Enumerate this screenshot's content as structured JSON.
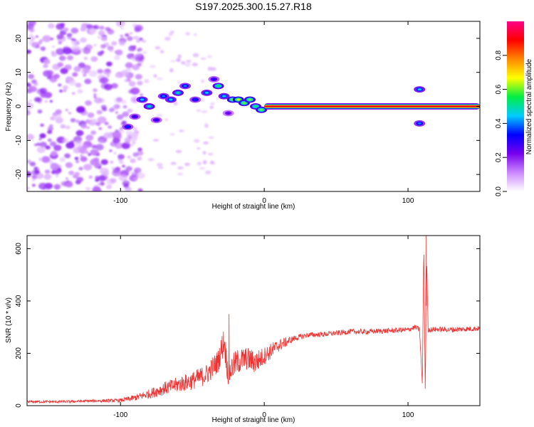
{
  "title": "S197.2025.300.15.27.R18",
  "colors": {
    "snr_line": "#ee3333",
    "frame": "#000000",
    "noise_purple": "#8a2be2"
  },
  "chart_data": [
    {
      "type": "heatmap",
      "xlabel": "Height of straight line (km)",
      "ylabel": "Frequency (Hz)",
      "xlim": [
        -165,
        150
      ],
      "ylim": [
        -25,
        25
      ],
      "xticks": [
        {
          "value": -100,
          "label": "-100"
        },
        {
          "value": 0,
          "label": "0"
        },
        {
          "value": 100,
          "label": "100"
        }
      ],
      "yticks": [
        {
          "value": -20,
          "label": "-20"
        },
        {
          "value": -10,
          "label": "-10"
        },
        {
          "value": 0,
          "label": "0"
        },
        {
          "value": 10,
          "label": "10"
        },
        {
          "value": 20,
          "label": "20"
        }
      ],
      "ridge": {
        "x_start": 0,
        "x_end": 150,
        "frequency": 0,
        "amplitude": 1.0
      },
      "noise_region": {
        "x_start": -165,
        "x_end": -95,
        "frequency_range": [
          -25,
          25
        ],
        "amplitude": 0.15
      },
      "feature_points": [
        {
          "x": -95,
          "y": -6,
          "a": 0.35
        },
        {
          "x": -90,
          "y": -3,
          "a": 0.3
        },
        {
          "x": -85,
          "y": 2,
          "a": 0.45
        },
        {
          "x": -80,
          "y": 0,
          "a": 0.5
        },
        {
          "x": -75,
          "y": -4,
          "a": 0.3
        },
        {
          "x": -70,
          "y": 3,
          "a": 0.4
        },
        {
          "x": -65,
          "y": 2,
          "a": 0.45
        },
        {
          "x": -60,
          "y": 4,
          "a": 0.5
        },
        {
          "x": -55,
          "y": 6,
          "a": 0.4
        },
        {
          "x": -48,
          "y": 2,
          "a": 0.35
        },
        {
          "x": -40,
          "y": 4,
          "a": 0.45
        },
        {
          "x": -35,
          "y": 8,
          "a": 0.3
        },
        {
          "x": -32,
          "y": 6,
          "a": 0.55
        },
        {
          "x": -28,
          "y": 3,
          "a": 0.45
        },
        {
          "x": -25,
          "y": -2,
          "a": 0.25
        },
        {
          "x": -22,
          "y": 2,
          "a": 0.6
        },
        {
          "x": -18,
          "y": 2,
          "a": 0.65
        },
        {
          "x": -14,
          "y": 1,
          "a": 0.6
        },
        {
          "x": -10,
          "y": 2,
          "a": 0.6
        },
        {
          "x": -6,
          "y": 0,
          "a": 0.55
        },
        {
          "x": -2,
          "y": -1,
          "a": 0.6
        },
        {
          "x": 25,
          "y": 0,
          "a": 0.7
        },
        {
          "x": 108,
          "y": 5,
          "a": 0.45
        },
        {
          "x": 108,
          "y": -5,
          "a": 0.4
        }
      ],
      "colorbar": {
        "label": "Normalized spectral amplitude",
        "range": [
          0,
          1
        ],
        "ticks": [
          {
            "value": 0.0,
            "label": "0.0"
          },
          {
            "value": 0.2,
            "label": "0.2"
          },
          {
            "value": 0.4,
            "label": "0.4"
          },
          {
            "value": 0.6,
            "label": "0.6"
          },
          {
            "value": 0.8,
            "label": "0.8"
          }
        ],
        "stops": [
          "#ffffff",
          "#cc88ff",
          "#7700ee",
          "#0000ff",
          "#00ccff",
          "#00ee44",
          "#ffff00",
          "#ff8800",
          "#ff0000",
          "#ff0088"
        ]
      }
    },
    {
      "type": "line",
      "xlabel": "Height of straight line (km)",
      "ylabel": "SNR (10 * v/v)",
      "xlim": [
        -165,
        150
      ],
      "ylim": [
        0,
        650
      ],
      "xticks": [
        {
          "value": -100,
          "label": "-100"
        },
        {
          "value": 0,
          "label": "0"
        },
        {
          "value": 100,
          "label": "100"
        }
      ],
      "yticks": [
        {
          "value": 0,
          "label": "0"
        },
        {
          "value": 200,
          "label": "200"
        },
        {
          "value": 400,
          "label": "400"
        },
        {
          "value": 600,
          "label": "600"
        }
      ],
      "series": [
        {
          "name": "SNR",
          "x": [
            -165,
            -140,
            -120,
            -100,
            -90,
            -80,
            -70,
            -60,
            -50,
            -40,
            -32,
            -28,
            -25,
            -22,
            -18,
            -12,
            -6,
            0,
            10,
            20,
            30,
            40,
            50,
            60,
            70,
            80,
            90,
            100,
            105,
            108,
            110,
            111,
            112,
            113,
            114,
            120,
            130,
            140,
            150
          ],
          "values": [
            15,
            15,
            18,
            20,
            30,
            45,
            65,
            80,
            95,
            120,
            170,
            250,
            120,
            150,
            170,
            180,
            165,
            190,
            230,
            255,
            270,
            272,
            277,
            283,
            282,
            285,
            287,
            290,
            300,
            290,
            80,
            620,
            50,
            560,
            290,
            292,
            290,
            293,
            295
          ],
          "jitter": [
            5,
            5,
            5,
            7,
            12,
            18,
            25,
            30,
            35,
            40,
            45,
            55,
            50,
            50,
            50,
            45,
            45,
            35,
            25,
            12,
            10,
            10,
            10,
            10,
            10,
            10,
            10,
            10,
            10,
            10,
            0,
            0,
            0,
            0,
            10,
            10,
            10,
            10,
            10
          ],
          "spikes": [
            {
              "x": -24.5,
              "value": 350
            },
            {
              "x": 112.5,
              "value": 650
            }
          ]
        }
      ]
    }
  ]
}
